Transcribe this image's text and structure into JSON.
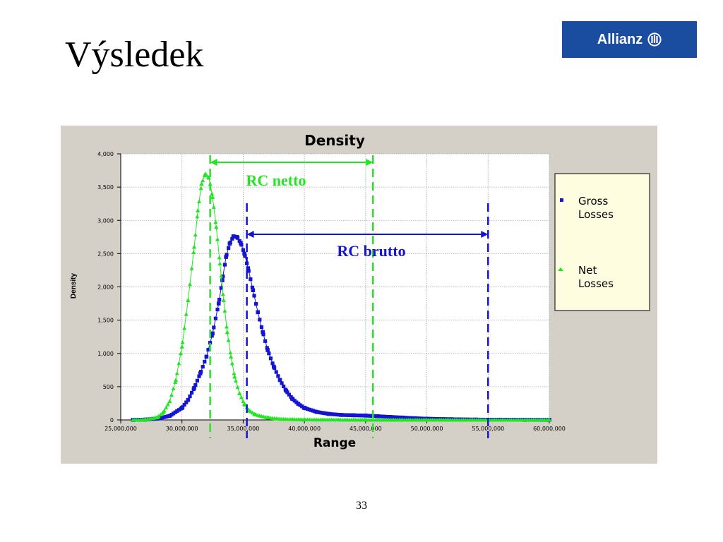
{
  "slide": {
    "title": "Výsledek",
    "logo_text": "Allianz",
    "page_number": "33"
  },
  "colors": {
    "gross": "#1414d2",
    "net": "#22e622",
    "logo_bg": "#1a4da0",
    "panel_bg": "#d4d0c8",
    "legend_bg": "#fffde0"
  },
  "chart_data": {
    "type": "scatter",
    "title": "Density",
    "xlabel": "Range",
    "ylabel": "Density",
    "xlim": [
      25000000,
      60000000
    ],
    "ylim": [
      0,
      4000
    ],
    "x_ticks": [
      25000000,
      30000000,
      35000000,
      40000000,
      45000000,
      50000000,
      55000000,
      60000000
    ],
    "x_tick_labels": [
      "25,000,000",
      "30,000,000",
      "35,000,000",
      "40,000,000",
      "45,000,000",
      "50,000,000",
      "55,000,000",
      "60,000,000"
    ],
    "y_ticks": [
      0,
      500,
      1000,
      1500,
      2000,
      2500,
      3000,
      3500,
      4000
    ],
    "y_tick_labels": [
      "0",
      "500",
      "1,000",
      "1,500",
      "2,000",
      "2,500",
      "3,000",
      "3,500",
      "4,000"
    ],
    "grid": true,
    "legend_position": "right",
    "series": [
      {
        "name": "Gross Losses",
        "marker": "square",
        "points": [
          [
            26000000,
            0
          ],
          [
            27000000,
            5
          ],
          [
            28000000,
            20
          ],
          [
            29000000,
            60
          ],
          [
            30000000,
            180
          ],
          [
            30500000,
            300
          ],
          [
            31000000,
            480
          ],
          [
            31500000,
            700
          ],
          [
            32000000,
            950
          ],
          [
            32500000,
            1300
          ],
          [
            33000000,
            1750
          ],
          [
            33300000,
            2100
          ],
          [
            33600000,
            2450
          ],
          [
            33900000,
            2650
          ],
          [
            34200000,
            2760
          ],
          [
            34500000,
            2750
          ],
          [
            34800000,
            2660
          ],
          [
            35100000,
            2500
          ],
          [
            35400000,
            2280
          ],
          [
            35800000,
            1950
          ],
          [
            36200000,
            1620
          ],
          [
            36600000,
            1320
          ],
          [
            37000000,
            1050
          ],
          [
            37500000,
            800
          ],
          [
            38000000,
            600
          ],
          [
            38500000,
            440
          ],
          [
            39000000,
            320
          ],
          [
            39500000,
            240
          ],
          [
            40000000,
            180
          ],
          [
            41000000,
            120
          ],
          [
            42000000,
            90
          ],
          [
            43000000,
            75
          ],
          [
            44000000,
            70
          ],
          [
            45000000,
            65
          ],
          [
            46000000,
            55
          ],
          [
            47000000,
            45
          ],
          [
            48000000,
            35
          ],
          [
            49000000,
            25
          ],
          [
            50000000,
            18
          ],
          [
            52000000,
            10
          ],
          [
            54000000,
            5
          ],
          [
            56000000,
            3
          ],
          [
            58000000,
            1
          ],
          [
            60000000,
            0
          ]
        ]
      },
      {
        "name": "Net Losses",
        "marker": "triangle",
        "points": [
          [
            26000000,
            0
          ],
          [
            27000000,
            5
          ],
          [
            28000000,
            40
          ],
          [
            28500000,
            120
          ],
          [
            29000000,
            280
          ],
          [
            29500000,
            600
          ],
          [
            30000000,
            1100
          ],
          [
            30500000,
            1800
          ],
          [
            31000000,
            2600
          ],
          [
            31300000,
            3150
          ],
          [
            31600000,
            3550
          ],
          [
            31900000,
            3700
          ],
          [
            32200000,
            3640
          ],
          [
            32500000,
            3350
          ],
          [
            32800000,
            2900
          ],
          [
            33100000,
            2350
          ],
          [
            33400000,
            1800
          ],
          [
            33700000,
            1320
          ],
          [
            34000000,
            950
          ],
          [
            34300000,
            650
          ],
          [
            34700000,
            400
          ],
          [
            35100000,
            240
          ],
          [
            35500000,
            140
          ],
          [
            36000000,
            80
          ],
          [
            37000000,
            35
          ],
          [
            38000000,
            15
          ],
          [
            40000000,
            5
          ],
          [
            45000000,
            2
          ],
          [
            50000000,
            1
          ],
          [
            55000000,
            0
          ],
          [
            60000000,
            0
          ]
        ]
      }
    ],
    "annotations": [
      {
        "label": "RC netto",
        "series": "Net Losses",
        "range": [
          32300000,
          45600000
        ]
      },
      {
        "label": "RC brutto",
        "series": "Gross Losses",
        "range": [
          35300000,
          55000000
        ]
      }
    ]
  }
}
